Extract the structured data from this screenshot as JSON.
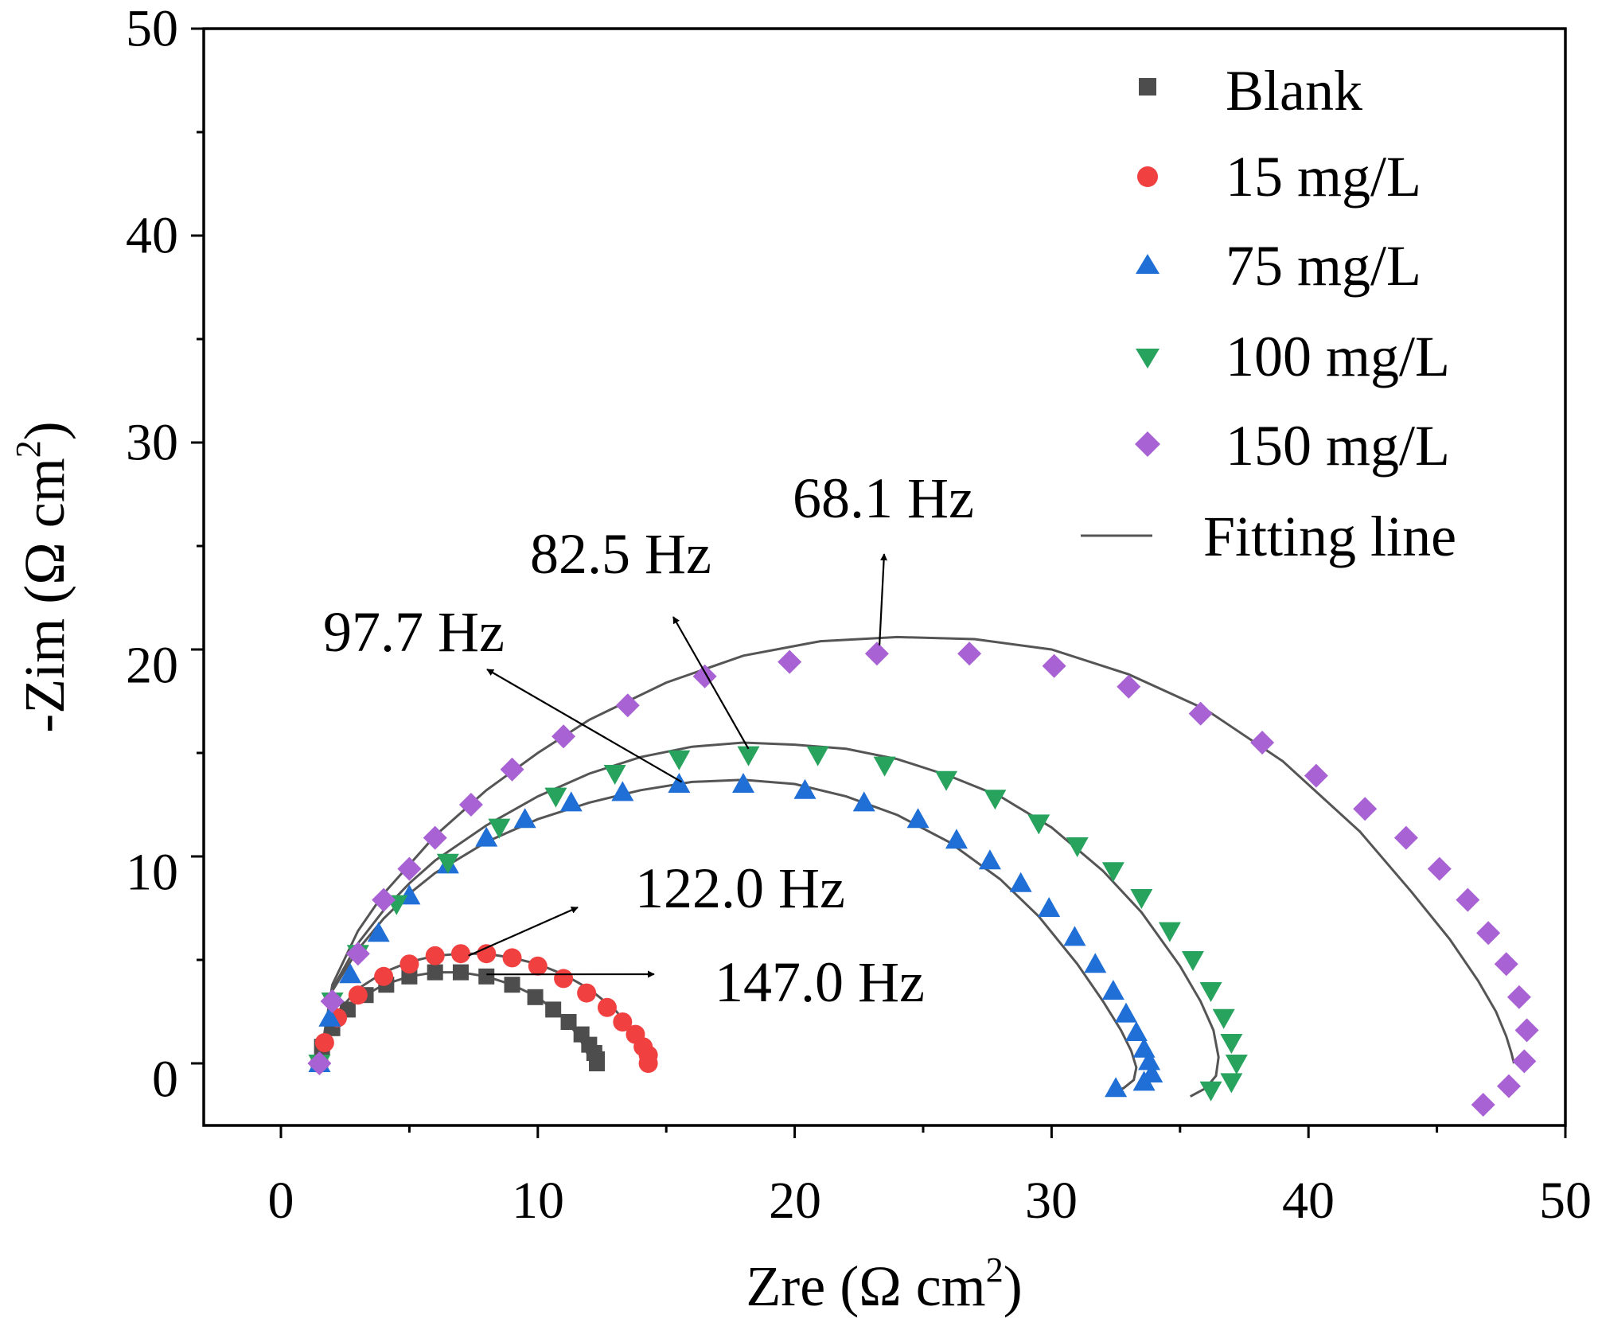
{
  "chart_data": {
    "type": "scatter",
    "title": "",
    "xlabel": {
      "main": "Zre (Ω cm",
      "sup": "2",
      "close": ")"
    },
    "ylabel": {
      "main": "-Zim (Ω cm",
      "sup": "2",
      "close": ")"
    },
    "xlim": [
      -3,
      50
    ],
    "ylim": [
      -3,
      50
    ],
    "xticks": [
      "0",
      "10",
      "20",
      "30",
      "40",
      "50"
    ],
    "yticks": [
      "0",
      "10",
      "20",
      "30",
      "40",
      "50"
    ],
    "legend_position": "top-right",
    "series": [
      {
        "name": "Blank",
        "marker": "square",
        "color": "#4d4d4d",
        "x": [
          1.5,
          1.6,
          2.0,
          2.6,
          3.3,
          4.1,
          5.0,
          6.0,
          7.0,
          8.0,
          9.0,
          9.9,
          10.6,
          11.2,
          11.7,
          12.0,
          12.2,
          12.3,
          12.3
        ],
        "y": [
          0.0,
          0.8,
          1.7,
          2.6,
          3.3,
          3.8,
          4.2,
          4.4,
          4.4,
          4.2,
          3.8,
          3.2,
          2.6,
          2.0,
          1.4,
          0.9,
          0.5,
          0.2,
          0.0
        ]
      },
      {
        "name": "15 mg/L",
        "marker": "circle",
        "color": "#f04040",
        "x": [
          1.5,
          1.7,
          2.2,
          3.0,
          4.0,
          5.0,
          6.0,
          7.0,
          8.0,
          9.0,
          10.0,
          11.0,
          11.9,
          12.7,
          13.3,
          13.8,
          14.1,
          14.3,
          14.3
        ],
        "y": [
          0.0,
          1.0,
          2.2,
          3.3,
          4.2,
          4.8,
          5.2,
          5.3,
          5.3,
          5.1,
          4.7,
          4.1,
          3.4,
          2.7,
          2.0,
          1.4,
          0.8,
          0.4,
          0.0
        ]
      },
      {
        "name": "75 mg/L",
        "marker": "triangle-up",
        "color": "#1f6fd6",
        "x": [
          1.5,
          1.9,
          2.7,
          3.8,
          5.0,
          6.5,
          8.0,
          9.5,
          11.3,
          13.3,
          15.5,
          18.0,
          20.4,
          22.7,
          24.8,
          26.3,
          27.6,
          28.8,
          29.9,
          30.9,
          31.7,
          32.4,
          32.9,
          33.3,
          33.6,
          33.8,
          33.9,
          33.6,
          32.5
        ],
        "y": [
          0.0,
          2.2,
          4.3,
          6.3,
          8.1,
          9.6,
          10.9,
          11.8,
          12.6,
          13.1,
          13.5,
          13.5,
          13.2,
          12.6,
          11.8,
          10.8,
          9.8,
          8.7,
          7.5,
          6.1,
          4.8,
          3.5,
          2.4,
          1.5,
          0.7,
          0.1,
          -0.5,
          -0.9,
          -1.2
        ]
      },
      {
        "name": "100 mg/L",
        "marker": "triangle-down",
        "color": "#27a35e",
        "x": [
          1.5,
          2.0,
          3.0,
          4.5,
          6.5,
          8.5,
          10.7,
          13.0,
          15.5,
          18.2,
          20.9,
          23.5,
          25.9,
          27.8,
          29.5,
          31.0,
          32.4,
          33.5,
          34.6,
          35.5,
          36.2,
          36.7,
          37.0,
          37.2,
          37.0,
          36.2
        ],
        "y": [
          0.0,
          3.0,
          5.3,
          7.7,
          9.7,
          11.4,
          12.9,
          14.0,
          14.7,
          14.9,
          14.9,
          14.4,
          13.7,
          12.8,
          11.6,
          10.5,
          9.3,
          8.0,
          6.4,
          5.0,
          3.5,
          2.2,
          1.0,
          0.0,
          -0.9,
          -1.3
        ]
      },
      {
        "name": "150 mg/L",
        "marker": "diamond",
        "color": "#a862d4",
        "x": [
          1.5,
          2.0,
          3.0,
          4.0,
          5.0,
          6.0,
          7.4,
          9.0,
          11.0,
          13.5,
          16.5,
          19.8,
          23.2,
          26.8,
          30.1,
          33.0,
          35.8,
          38.2,
          40.3,
          42.2,
          43.8,
          45.1,
          46.2,
          47.0,
          47.7,
          48.2,
          48.5,
          48.4,
          47.8,
          46.8
        ],
        "y": [
          0.0,
          3.0,
          5.3,
          7.9,
          9.4,
          10.9,
          12.5,
          14.2,
          15.8,
          17.3,
          18.7,
          19.4,
          19.8,
          19.8,
          19.2,
          18.2,
          16.9,
          15.5,
          13.9,
          12.3,
          10.9,
          9.4,
          7.9,
          6.3,
          4.8,
          3.2,
          1.6,
          0.1,
          -1.1,
          -2.0
        ]
      },
      {
        "name": "Fitting line",
        "marker": "line",
        "color": "#555555",
        "fits": [
          {
            "x": [
              1.5,
              2.0,
              3.0,
              4.0,
              5.0,
              6.0,
              7.0,
              8.0,
              9.0,
              10.0,
              11.0,
              11.6,
              12.0
            ],
            "y": [
              0.0,
              1.8,
              3.1,
              3.8,
              4.2,
              4.4,
              4.4,
              4.2,
              3.8,
              3.2,
              2.2,
              1.3,
              0.3
            ]
          },
          {
            "x": [
              1.5,
              2.0,
              3.0,
              4.0,
              5.0,
              6.0,
              7.0,
              8.0,
              9.0,
              10.0,
              11.0,
              12.0,
              13.0,
              13.6,
              14.0,
              14.2
            ],
            "y": [
              0.0,
              2.2,
              3.6,
              4.4,
              4.9,
              5.2,
              5.3,
              5.3,
              5.1,
              4.8,
              4.3,
              3.6,
              2.6,
              1.7,
              0.8,
              0.0
            ]
          },
          {
            "x": [
              1.5,
              2.0,
              3.0,
              4.0,
              5.0,
              6.0,
              8.0,
              10.0,
              12.0,
              14.0,
              16.0,
              18.0,
              20.0,
              22.0,
              24.0,
              26.0,
              28.0,
              29.5,
              31.0,
              32.0,
              32.7,
              33.1,
              33.3,
              33.2,
              32.8,
              32.2
            ],
            "y": [
              0.0,
              3.5,
              5.5,
              7.0,
              8.2,
              9.2,
              10.7,
              11.8,
              12.6,
              13.2,
              13.6,
              13.7,
              13.5,
              12.9,
              12.0,
              10.7,
              8.9,
              7.1,
              4.8,
              3.0,
              1.6,
              0.6,
              -0.2,
              -0.8,
              -1.2,
              -1.4
            ]
          },
          {
            "x": [
              1.5,
              2.0,
              3.0,
              4.0,
              5.0,
              6.0,
              8.0,
              10.0,
              12.0,
              14.0,
              16.0,
              18.0,
              20.0,
              22.0,
              24.0,
              26.0,
              28.0,
              30.0,
              32.0,
              33.5,
              35.0,
              35.8,
              36.3,
              36.5,
              36.4,
              36.0,
              35.4
            ],
            "y": [
              0.0,
              3.6,
              5.8,
              7.4,
              8.7,
              9.8,
              11.5,
              12.9,
              14.0,
              14.8,
              15.3,
              15.5,
              15.4,
              15.2,
              14.7,
              13.9,
              12.9,
              11.4,
              9.3,
              7.3,
              4.7,
              3.0,
              1.6,
              0.3,
              -0.6,
              -1.2,
              -1.6
            ]
          },
          {
            "x": [
              1.5,
              2.0,
              3.0,
              4.0,
              6.0,
              8.0,
              10.0,
              12.0,
              15.0,
              18.0,
              21.0,
              24.0,
              27.0,
              30.0,
              33.0,
              36.0,
              39.0,
              42.0,
              44.0,
              45.5,
              46.6,
              47.3,
              47.7,
              47.9,
              48.0
            ],
            "y": [
              0.0,
              3.8,
              6.4,
              8.2,
              11.0,
              13.2,
              15.0,
              16.6,
              18.4,
              19.7,
              20.4,
              20.6,
              20.5,
              20.0,
              18.8,
              17.1,
              14.6,
              11.2,
              8.3,
              6.0,
              4.0,
              2.5,
              1.3,
              0.5,
              0.0
            ]
          }
        ]
      }
    ],
    "annotations": [
      {
        "text": "68.1 Hz",
        "point": [
          23.3,
          20.2
        ]
      },
      {
        "text": "82.5 Hz",
        "point": [
          18.2,
          15.2
        ]
      },
      {
        "text": "97.7 Hz",
        "point": [
          15.6,
          13.6
        ]
      },
      {
        "text": "122.0 Hz",
        "point": [
          7.3,
          5.2
        ]
      },
      {
        "text": "147.0 Hz",
        "point": [
          8.0,
          4.3
        ]
      }
    ]
  }
}
